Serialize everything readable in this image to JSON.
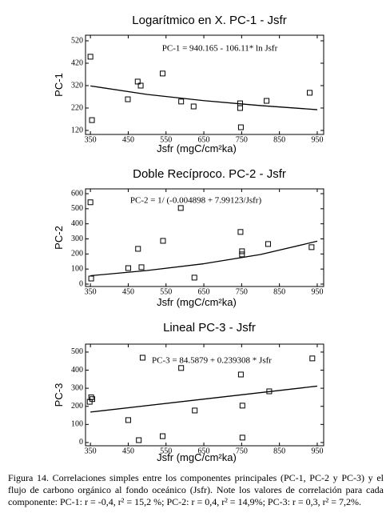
{
  "chart_data": [
    {
      "type": "scatter",
      "title": "Logarítmico en X. PC-1 - Jsfr",
      "x_label": "Jsfr (mgC/cm²ka)",
      "y_label": "PC-1",
      "annotation": "PC-1 = 940.165 - 106.11* ln Jsfr",
      "x": [
        350,
        354,
        449,
        475,
        483,
        541,
        590,
        623,
        746,
        746,
        748,
        816,
        930
      ],
      "values": [
        449,
        166,
        259,
        338,
        320,
        374,
        249,
        227,
        241,
        220,
        134,
        252,
        288
      ],
      "fit": {
        "x": [
          350,
          500,
          650,
          800,
          950
        ],
        "values": [
          318.6,
          280.7,
          252.9,
          230.9,
          212.6
        ]
      },
      "xlim": [
        337,
        967
      ],
      "xticks": [
        350,
        450,
        550,
        650,
        750,
        850,
        950
      ],
      "ylim": [
        102,
        545
      ],
      "yticks": [
        120,
        220,
        320,
        420,
        520
      ]
    },
    {
      "type": "scatter",
      "title": "Doble Recíproco. PC-2 - Jsfr",
      "x_label": "Jsfr (mgC/cm²ka)",
      "y_label": "PC-2",
      "annotation": "PC-2 = 1/ (-0.004898 + 7.99123/Jsfr)",
      "x": [
        350,
        352,
        450,
        476,
        485,
        542,
        589,
        625,
        747,
        751,
        751,
        820,
        935
      ],
      "values": [
        543,
        37,
        106,
        234,
        112,
        287,
        505,
        43,
        346,
        197,
        218,
        266,
        245
      ],
      "fit": {
        "x": [
          350,
          500,
          650,
          800,
          950
        ],
        "values": [
          55.8,
          90.2,
          135.2,
          196.4,
          284.6
        ]
      },
      "xlim": [
        337,
        967
      ],
      "xticks": [
        350,
        450,
        550,
        650,
        750,
        850,
        950
      ],
      "ylim": [
        -16,
        632
      ],
      "yticks": [
        0,
        100,
        200,
        300,
        400,
        500,
        600
      ]
    },
    {
      "type": "scatter",
      "title": "Lineal PC-3 - Jsfr",
      "x_label": "Jsfr (mgC/cm²ka)",
      "y_label": "PC-3",
      "annotation": "PC-3 = 84.5879 + 0.239308 * Jsfr",
      "x": [
        348,
        352,
        355,
        450,
        478,
        488,
        541,
        590,
        626,
        748,
        752,
        752,
        823,
        937
      ],
      "values": [
        225,
        250,
        240,
        124,
        13,
        469,
        35,
        412,
        177,
        376,
        204,
        27,
        283,
        465
      ],
      "fit": {
        "x": [
          350,
          950
        ],
        "values": [
          168.3,
          311.9
        ]
      },
      "xlim": [
        337,
        967
      ],
      "xticks": [
        350,
        450,
        550,
        650,
        750,
        850,
        950
      ],
      "ylim": [
        -18,
        544
      ],
      "yticks": [
        0,
        100,
        200,
        300,
        400,
        500
      ]
    }
  ],
  "caption": "Figura 14. Correlaciones simples entre los componentes principales (PC-1, PC-2 y PC-3) y el flujo de carbono orgánico al fondo oceánico (Jsfr). Note los valores de correlación para cada componente: PC-1: r = -0,4, r² = 15,2 %; PC-2: r = 0,4, r² = 14,9%; PC-3: r = 0,3, r² = 7,2%."
}
